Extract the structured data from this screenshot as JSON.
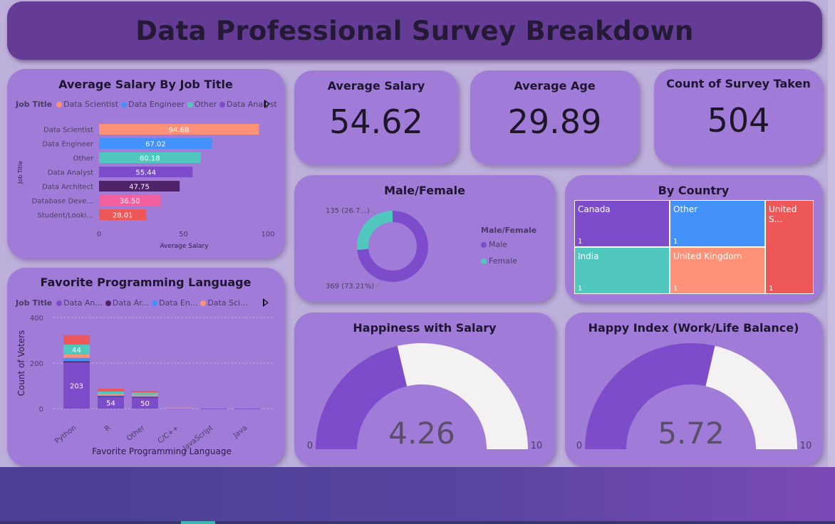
{
  "title": "Data Professional Survey Breakdown",
  "colors": {
    "data_scientist": "#fd9279",
    "data_engineer": "#4392fb",
    "other": "#50c8be",
    "data_analyst": "#7c4ccb",
    "data_architect": "#4f2369",
    "database_dev": "#f260a0",
    "student": "#ee5757",
    "male": "#7c4ccb",
    "female": "#50c8be",
    "gauge_fill": "#7c4ccb",
    "gauge_bg": "#f3f1f1"
  },
  "salary_card": {
    "title": "Average Salary By Job Title",
    "legend_title": "Job Title",
    "legend_items": [
      "Data Scientist",
      "Data Engineer",
      "Other",
      "Data Analyst"
    ]
  },
  "language_card": {
    "title": "Favorite Programming Language",
    "legend_title": "Job Title",
    "legend_items": [
      "Data An...",
      "Data Ar...",
      "Data En...",
      "Data Sci..."
    ]
  },
  "kpis": {
    "avg_salary": {
      "label": "Average Salary",
      "value": "54.62"
    },
    "avg_age": {
      "label": "Average Age",
      "value": "29.89"
    },
    "survey_count": {
      "label": "Count of Survey Taken",
      "value": "504"
    }
  },
  "gender_card": {
    "title": "Male/Female",
    "legend_title": "Male/Female",
    "legend_items": [
      "Male",
      "Female"
    ]
  },
  "country_card": {
    "title": "By Country"
  },
  "happiness_salary": {
    "title": "Happiness with Salary"
  },
  "happiness_balance": {
    "title": "Happy Index (Work/Life Balance)"
  },
  "chart_data": [
    {
      "type": "bar",
      "orientation": "horizontal",
      "title": "Average Salary By Job Title",
      "xlabel": "Average Salary",
      "ylabel": "Job Title",
      "categories": [
        "Data Scientist",
        "Data Engineer",
        "Other",
        "Data Analyst",
        "Data Architect",
        "Database Deve...",
        "Student/Looki..."
      ],
      "values": [
        94.68,
        67.02,
        60.18,
        55.44,
        47.75,
        36.5,
        28.01
      ],
      "value_labels": [
        "94.68",
        "67.02",
        "60.18",
        "55.44",
        "47.75",
        "36.50",
        "28.01"
      ],
      "xlim": [
        0,
        100
      ],
      "xticks": [
        "0",
        "50",
        "100"
      ],
      "legend": "top"
    },
    {
      "type": "bar",
      "stacked": true,
      "title": "Favorite Programming Language",
      "xlabel": "Favorite Programming Language",
      "ylabel": "Count of Voters",
      "categories": [
        "Python",
        "R",
        "Other",
        "C/C++",
        "JavaScript",
        "Java"
      ],
      "series": [
        {
          "name": "Data An...",
          "values": [
            203,
            54,
            50,
            2,
            1,
            1
          ]
        },
        {
          "name": "Data Ar...",
          "values": [
            5,
            1,
            1,
            0,
            0,
            0
          ]
        },
        {
          "name": "Data En...",
          "values": [
            15,
            3,
            4,
            1,
            0,
            0
          ]
        },
        {
          "name": "Data Sci...",
          "values": [
            15,
            6,
            6,
            1,
            0,
            0
          ]
        },
        {
          "name": "",
          "values": [
            44,
            11,
            10,
            0,
            0,
            0
          ]
        },
        {
          "name": "",
          "values": [
            41,
            13,
            7,
            0,
            0,
            0
          ]
        }
      ],
      "data_labels": [
        [
          "203",
          "44"
        ],
        [
          "54"
        ],
        [
          "50"
        ],
        [],
        [],
        []
      ],
      "ylim": [
        0,
        400
      ],
      "yticks": [
        "0",
        "200",
        "400"
      ],
      "legend": "top"
    },
    {
      "type": "pie",
      "donut": true,
      "title": "Male/Female",
      "labels": [
        "Male",
        "Female"
      ],
      "values": [
        369,
        135
      ],
      "data_labels": [
        "369 (73.21%)",
        "135 (26.7...)"
      ],
      "legend": "right"
    },
    {
      "type": "treemap",
      "title": "By Country",
      "labels": [
        "Canada",
        "Other",
        "United S...",
        "India",
        "United Kingdom"
      ],
      "values": [
        1,
        1,
        1,
        1,
        1
      ],
      "value_labels": [
        "1",
        "1",
        "1",
        "1",
        "1"
      ],
      "colors": [
        "#7c4ccb",
        "#4392fb",
        "#ee5757",
        "#50c8be",
        "#fd9279"
      ]
    },
    {
      "type": "gauge",
      "title": "Happiness with Salary",
      "value": 4.26,
      "value_label": "4.26",
      "min": 0,
      "max": 10,
      "min_label": "0",
      "max_label": "10"
    },
    {
      "type": "gauge",
      "title": "Happy Index (Work/Life Balance)",
      "value": 5.72,
      "value_label": "5.72",
      "min": 0,
      "max": 10,
      "min_label": "0",
      "max_label": "10"
    }
  ]
}
